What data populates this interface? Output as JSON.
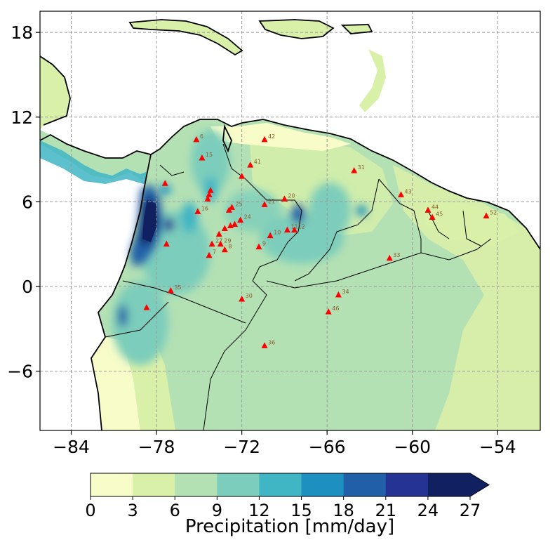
{
  "map": {
    "type": "filled-contour-map",
    "region": "Northern South America",
    "x_ticks": [
      "−84",
      "−78",
      "−72",
      "−66",
      "−60",
      "−54"
    ],
    "x_tick_values": [
      -84,
      -78,
      -72,
      -66,
      -60,
      -54
    ],
    "y_ticks": [
      "18",
      "12",
      "6",
      "0",
      "−6"
    ],
    "y_tick_values": [
      18,
      12,
      6,
      0,
      -6
    ],
    "xlim": [
      -86.2,
      -51.0
    ],
    "ylim": [
      -10.2,
      19.5
    ],
    "grid": true,
    "colors": {
      "ocean": "#ffffff",
      "coast": "#000000",
      "border": "#000000",
      "station_marker": "#ff0000",
      "station_label": "#8b5a2b"
    }
  },
  "colorbar": {
    "label": "Precipitation [mm/day]",
    "tick_labels": [
      "0",
      "3",
      "6",
      "9",
      "12",
      "15",
      "18",
      "21",
      "24",
      "27"
    ],
    "levels": [
      0,
      3,
      6,
      9,
      12,
      15,
      18,
      21,
      24,
      27
    ],
    "colors": [
      "#f7fcc8",
      "#d9f0a8",
      "#b4e1b4",
      "#7ccdbb",
      "#40b5c4",
      "#1e90c0",
      "#2160a8",
      "#253494",
      "#102060"
    ],
    "extend": "max"
  },
  "stations": [
    {
      "id": "6",
      "lon": -75.2,
      "lat": 10.4
    },
    {
      "id": "15",
      "lon": -74.8,
      "lat": 9.1
    },
    {
      "id": "42",
      "lon": -70.4,
      "lat": 10.4
    },
    {
      "id": "41",
      "lon": -71.4,
      "lat": 8.6
    },
    {
      "id": "31",
      "lon": -64.1,
      "lat": 8.2
    },
    {
      "id": "",
      "lon": -72.0,
      "lat": 7.8
    },
    {
      "id": "",
      "lon": -77.4,
      "lat": 7.3
    },
    {
      "id": "",
      "lon": -74.2,
      "lat": 6.8
    },
    {
      "id": "",
      "lon": -74.3,
      "lat": 6.5
    },
    {
      "id": "",
      "lon": -74.4,
      "lat": 6.2
    },
    {
      "id": "20",
      "lon": -69.0,
      "lat": 6.2
    },
    {
      "id": "43",
      "lon": -60.8,
      "lat": 6.5
    },
    {
      "id": "21",
      "lon": -70.4,
      "lat": 5.8
    },
    {
      "id": "25",
      "lon": -72.7,
      "lat": 5.6
    },
    {
      "id": "",
      "lon": -72.9,
      "lat": 5.4
    },
    {
      "id": "16",
      "lon": -75.1,
      "lat": 5.3
    },
    {
      "id": "44",
      "lon": -58.9,
      "lat": 5.4
    },
    {
      "id": "45",
      "lon": -58.6,
      "lat": 4.9
    },
    {
      "id": "52",
      "lon": -54.8,
      "lat": 5.0
    },
    {
      "id": "24",
      "lon": -72.1,
      "lat": 4.7
    },
    {
      "id": "",
      "lon": -72.5,
      "lat": 4.4
    },
    {
      "id": "",
      "lon": -72.8,
      "lat": 4.3
    },
    {
      "id": "",
      "lon": -73.2,
      "lat": 4.1
    },
    {
      "id": "",
      "lon": -73.6,
      "lat": 3.7
    },
    {
      "id": "11",
      "lon": -68.8,
      "lat": 4.0
    },
    {
      "id": "12",
      "lon": -68.3,
      "lat": 4.0
    },
    {
      "id": "10",
      "lon": -70.0,
      "lat": 3.6
    },
    {
      "id": "27",
      "lon": -74.1,
      "lat": 3.0
    },
    {
      "id": "29",
      "lon": -73.5,
      "lat": 3.0
    },
    {
      "id": "",
      "lon": -77.3,
      "lat": 3.0
    },
    {
      "id": "9",
      "lon": -70.8,
      "lat": 2.8
    },
    {
      "id": "8",
      "lon": -73.2,
      "lat": 2.6
    },
    {
      "id": "7",
      "lon": -74.3,
      "lat": 2.2
    },
    {
      "id": "33",
      "lon": -61.6,
      "lat": 2.0
    },
    {
      "id": "35",
      "lon": -77.0,
      "lat": -0.3
    },
    {
      "id": "34",
      "lon": -65.2,
      "lat": -0.6
    },
    {
      "id": "30",
      "lon": -72.0,
      "lat": -0.9
    },
    {
      "id": "",
      "lon": -78.7,
      "lat": -1.5
    },
    {
      "id": "46",
      "lon": -65.9,
      "lat": -1.8
    },
    {
      "id": "36",
      "lon": -70.4,
      "lat": -4.2
    }
  ]
}
